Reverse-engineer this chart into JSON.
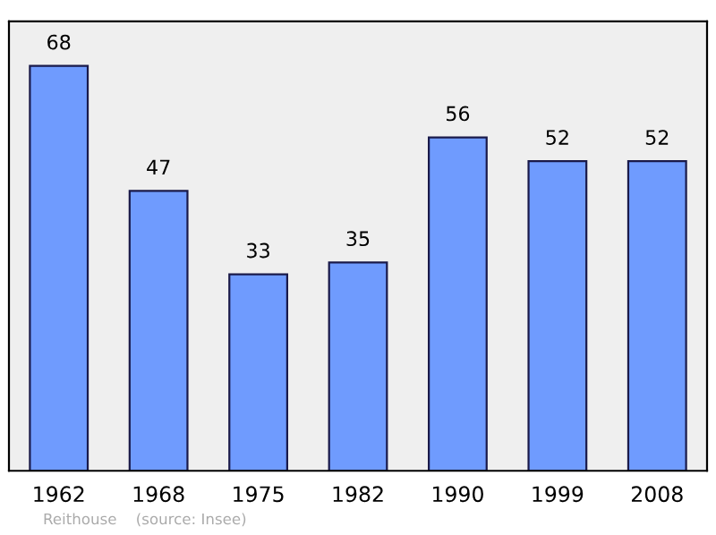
{
  "chart_data": {
    "type": "bar",
    "categories": [
      "1962",
      "1968",
      "1975",
      "1982",
      "1990",
      "1999",
      "2008"
    ],
    "values": [
      68,
      47,
      33,
      35,
      56,
      52,
      52
    ],
    "color": "#6f9bfe",
    "data_labels": true,
    "grid": false,
    "legend": false,
    "annotations": [
      "Reithouse    (source: Insee)"
    ]
  }
}
